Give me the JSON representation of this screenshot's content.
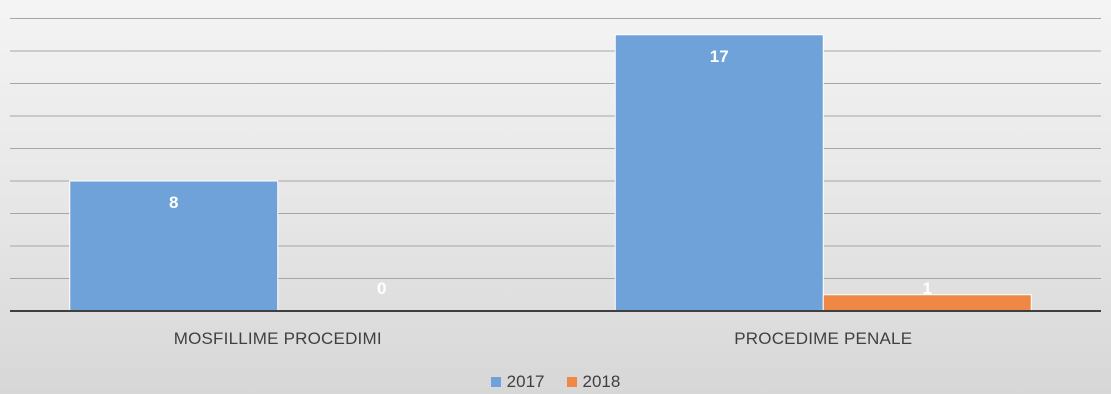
{
  "chart_data": {
    "type": "bar",
    "categories": [
      "MOSFILLIME PROCEDIMI",
      "PROCEDIME PENALE"
    ],
    "series": [
      {
        "name": "2017",
        "values": [
          8,
          17
        ],
        "color": "#6fa2d8"
      },
      {
        "name": "2018",
        "values": [
          0,
          1
        ],
        "color": "#ee8844"
      }
    ],
    "ylim": [
      0,
      18
    ],
    "grid": true,
    "legend_position": "bottom"
  },
  "colors": {
    "gridline": "#a6a6a6",
    "axis": "#404040",
    "data_label": "#ffffff",
    "bar_border": "#ffffff"
  }
}
